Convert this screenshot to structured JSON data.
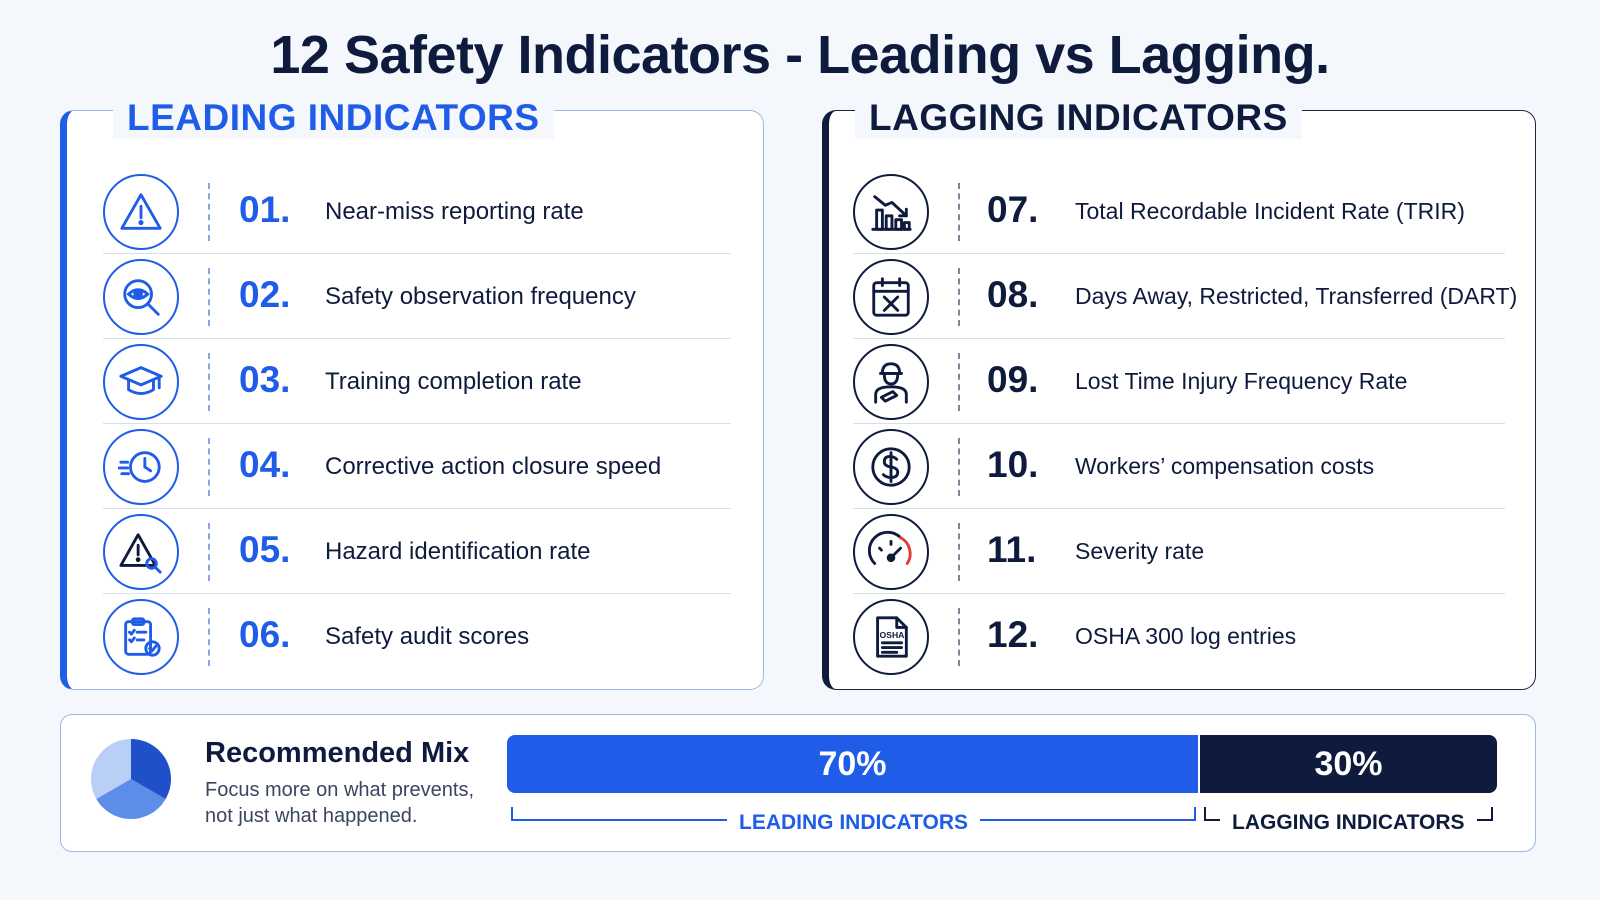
{
  "title": "12 Safety Indicators - Leading vs Lagging.",
  "colors": {
    "leading": "#1f5ce8",
    "lagging": "#0f1b3d",
    "accent_red": "#e53935"
  },
  "leading": {
    "heading": "LEADING INDICATORS",
    "items": [
      {
        "num": "01.",
        "label": "Near-miss reporting rate",
        "icon": "warning-triangle-icon"
      },
      {
        "num": "02.",
        "label": "Safety observation frequency",
        "icon": "eye-magnifier-icon"
      },
      {
        "num": "03.",
        "label": "Training completion rate",
        "icon": "graduation-cap-icon"
      },
      {
        "num": "04.",
        "label": "Corrective action closure speed",
        "icon": "fast-clock-icon"
      },
      {
        "num": "05.",
        "label": "Hazard identification rate",
        "icon": "hazard-search-icon"
      },
      {
        "num": "06.",
        "label": "Safety audit scores",
        "icon": "audit-clipboard-icon"
      }
    ]
  },
  "lagging": {
    "heading": "LAGGING INDICATORS",
    "items": [
      {
        "num": "07.",
        "label": "Total Recordable Incident Rate (TRIR)",
        "icon": "declining-chart-icon"
      },
      {
        "num": "08.",
        "label": "Days Away, Restricted, Transferred (DART)",
        "icon": "calendar-x-icon"
      },
      {
        "num": "09.",
        "label": "Lost Time Injury Frequency Rate",
        "icon": "injured-worker-icon"
      },
      {
        "num": "10.",
        "label": "Workers’ compensation costs",
        "icon": "dollar-coin-icon"
      },
      {
        "num": "11.",
        "label": "Severity rate",
        "icon": "gauge-icon"
      },
      {
        "num": "12.",
        "label": "OSHA 300 log entries",
        "icon": "osha-document-icon",
        "icon_text": "OSHA"
      }
    ]
  },
  "mix": {
    "title": "Recommended Mix",
    "subtitle": "Focus more on what prevents, not just what happened.",
    "leading_pct": 70,
    "lagging_pct": 30,
    "leading_label": "70%",
    "lagging_label": "30%",
    "leading_caption": "LEADING INDICATORS",
    "lagging_caption": "LAGGING INDICATORS",
    "pie_icon": "pie-chart-icon"
  }
}
